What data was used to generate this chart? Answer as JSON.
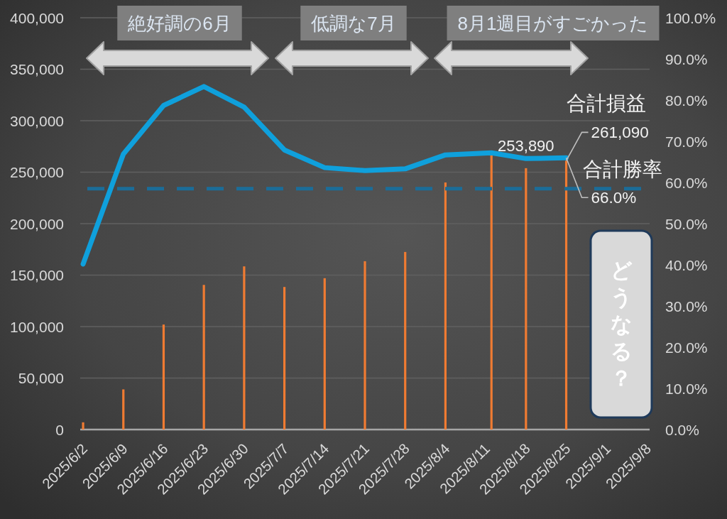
{
  "chart_data": {
    "type": "bar",
    "x": [
      "2025-06-02",
      "2025-06-09",
      "2025-06-16",
      "2025-06-23",
      "2025-06-30",
      "2025-07-07",
      "2025-07-14",
      "2025-07-21",
      "2025-07-28",
      "2025-08-04",
      "2025-08-12",
      "2025-08-18",
      "2025-08-25"
    ],
    "xlim": [
      "2025-06-01T12:00",
      "2025-09-08T12:00"
    ],
    "xticks": [
      {
        "value": "2025-06-02",
        "label": "2025/6/2"
      },
      {
        "value": "2025-06-09",
        "label": "2025/6/9"
      },
      {
        "value": "2025-06-16",
        "label": "2025/6/16"
      },
      {
        "value": "2025-06-23",
        "label": "2025/6/23"
      },
      {
        "value": "2025-06-30",
        "label": "2025/6/30"
      },
      {
        "value": "2025-07-07",
        "label": "2025/7/7"
      },
      {
        "value": "2025-07-14",
        "label": "2025/7/14"
      },
      {
        "value": "2025-07-21",
        "label": "2025/7/21"
      },
      {
        "value": "2025-07-28",
        "label": "2025/7/28"
      },
      {
        "value": "2025-08-04",
        "label": "2025/8/4"
      },
      {
        "value": "2025-08-11",
        "label": "2025/8/11"
      },
      {
        "value": "2025-08-18",
        "label": "2025/8/18"
      },
      {
        "value": "2025-08-25",
        "label": "2025/8/25"
      },
      {
        "value": "2025-09-01",
        "label": "2025/9/1"
      },
      {
        "value": "2025-09-08",
        "label": "2025/9/8"
      }
    ],
    "ylim": [
      0,
      400000
    ],
    "yticks": [
      0,
      {
        "value": 50000,
        "label": "50,000"
      },
      {
        "value": 100000,
        "label": "100,000"
      },
      {
        "value": 150000,
        "label": "150,000"
      },
      {
        "value": 200000,
        "label": "200,000"
      },
      {
        "value": 250000,
        "label": "250,000"
      },
      {
        "value": 300000,
        "label": "300,000"
      },
      {
        "value": 350000,
        "label": "350,000"
      },
      {
        "value": 400000,
        "label": "400,000"
      }
    ],
    "y2lim": [
      0,
      100
    ],
    "y2ticks": [
      {
        "value": 0,
        "label": "0.0%"
      },
      {
        "value": 10,
        "label": "10.0%"
      },
      {
        "value": 20,
        "label": "20.0%"
      },
      {
        "value": 30,
        "label": "30.0%"
      },
      {
        "value": 40,
        "label": "40.0%"
      },
      {
        "value": 50,
        "label": "50.0%"
      },
      {
        "value": 60,
        "label": "60.0%"
      },
      {
        "value": 70,
        "label": "70.0%"
      },
      {
        "value": 80,
        "label": "80.0%"
      },
      {
        "value": 90,
        "label": "90.0%"
      },
      {
        "value": 100,
        "label": "100.0%"
      }
    ],
    "series": [
      {
        "name": "合計損益",
        "color": "#f07b32",
        "values": [
          7000,
          39000,
          102000,
          140500,
          158500,
          138500,
          147000,
          163500,
          172500,
          240000,
          268000,
          253890,
          261090
        ],
        "value_labels": [
          null,
          null,
          null,
          null,
          null,
          null,
          null,
          null,
          null,
          null,
          null,
          "253,890",
          "261,090"
        ]
      },
      {
        "name": "合計勝率",
        "type": "line",
        "axis": "y2",
        "color": "#0fa0dc",
        "values": [
          40.2,
          66.9,
          78.7,
          83.3,
          78.3,
          67.9,
          63.6,
          62.9,
          63.3,
          66.7,
          67.2,
          65.8,
          66.0
        ],
        "value_labels": [
          null,
          null,
          null,
          null,
          null,
          null,
          null,
          null,
          null,
          null,
          null,
          null,
          "66.0%"
        ]
      }
    ],
    "ref_lines": [
      {
        "axis": "y2",
        "value": 58.5,
        "color": "#1b6d99",
        "line_style": "dashed"
      }
    ],
    "annotations": [
      "絶好調の6月",
      "低調な7月",
      "8月1週目がすごかった",
      "どうなる？"
    ],
    "grid": "y"
  }
}
